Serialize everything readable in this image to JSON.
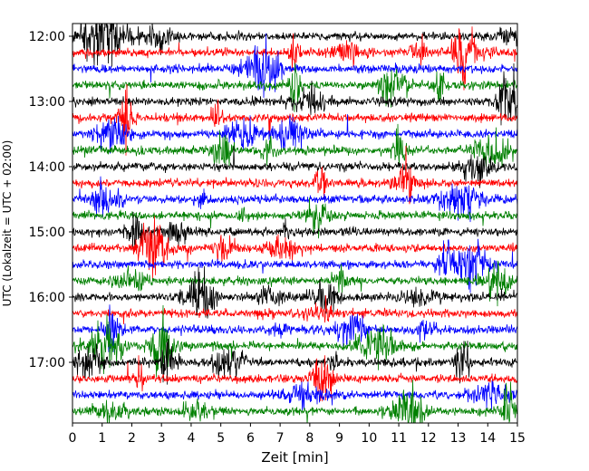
{
  "chart_data": {
    "type": "line",
    "title": "",
    "xlabel": "Zeit  [min]",
    "ylabel": "UTC (Lokalzeit = UTC + 02:00)",
    "xlim": [
      0,
      15
    ],
    "xticks": [
      "0",
      "1",
      "2",
      "3",
      "4",
      "5",
      "6",
      "7",
      "8",
      "9",
      "10",
      "11",
      "12",
      "13",
      "14",
      "15"
    ],
    "yticks": [
      "12:00",
      "13:00",
      "14:00",
      "15:00",
      "16:00",
      "17:00"
    ],
    "ytick_hours": [
      12,
      13,
      14,
      15,
      16,
      17
    ],
    "row_start": "11:60",
    "row_interval_minutes": 15,
    "row_colors": [
      "#000000",
      "#ff0000",
      "#0000ff",
      "#008000"
    ],
    "rows": 24,
    "grid": false,
    "legend": "none"
  }
}
